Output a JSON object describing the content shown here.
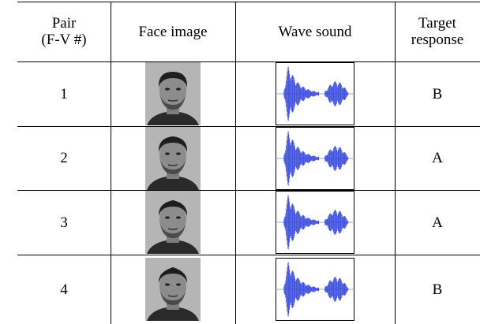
{
  "table": {
    "header": [
      [
        "Pair",
        "(F-V #)"
      ],
      [
        "Face image"
      ],
      [
        "Wave sound"
      ],
      [
        "Target",
        "response"
      ]
    ],
    "rows": [
      {
        "pair": "1",
        "target": "B"
      },
      {
        "pair": "2",
        "target": "A"
      },
      {
        "pair": "3",
        "target": "A"
      },
      {
        "pair": "4",
        "target": "B"
      }
    ]
  }
}
